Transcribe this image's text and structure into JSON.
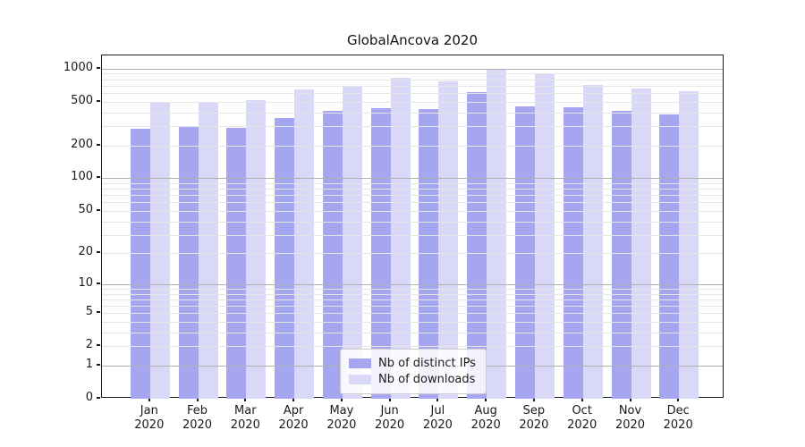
{
  "chart_data": {
    "type": "bar",
    "title": "GlobalAncova 2020",
    "year_label": "2020",
    "categories": [
      "Jan",
      "Feb",
      "Mar",
      "Apr",
      "May",
      "Jun",
      "Jul",
      "Aug",
      "Sep",
      "Oct",
      "Nov",
      "Dec"
    ],
    "series": [
      {
        "name": "Nb of distinct IPs",
        "color": "#a6a6f0",
        "values": [
          285,
          300,
          290,
          357,
          415,
          437,
          427,
          618,
          455,
          447,
          413,
          386
        ]
      },
      {
        "name": "Nb of downloads",
        "color": "#d9d9f7",
        "values": [
          492,
          496,
          520,
          654,
          680,
          820,
          761,
          980,
          896,
          718,
          663,
          625
        ]
      }
    ],
    "yscale": "log1p",
    "y_ticks": [
      0,
      1,
      2,
      5,
      10,
      20,
      50,
      100,
      200,
      500,
      1000
    ],
    "ylim": [
      0,
      1320
    ],
    "xlabel": "",
    "ylabel": "",
    "grid": {
      "enabled": true,
      "major_color": "#b0b0b0",
      "minor_color": "#e5e5e5"
    },
    "legend": {
      "position": "lower center",
      "frame_color": "#cccccc"
    }
  }
}
